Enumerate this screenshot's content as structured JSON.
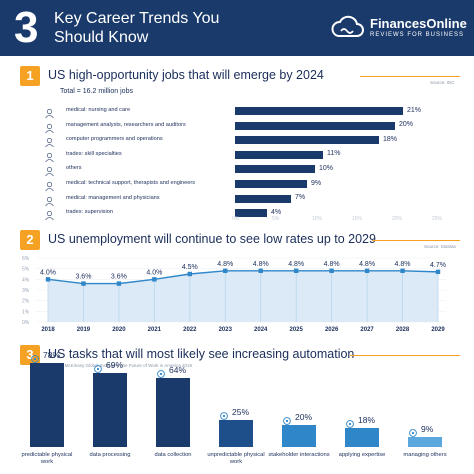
{
  "header": {
    "number": "3",
    "title": "Key Career Trends You Should Know",
    "brand": "FinancesOnline",
    "tagline": "REVIEWS FOR BUSINESS",
    "logo_icon": "cloud-wave-icon"
  },
  "colors": {
    "navy": "#1a3a6b",
    "orange": "#f4a124",
    "blue": "#2f86c9",
    "light_fill": "#dbeaf6"
  },
  "sections": [
    {
      "number": "1",
      "title": "US high-opportunity jobs that will emerge by 2024",
      "source": "Source: IDC",
      "subtitle": "Total = 16.2 million jobs"
    },
    {
      "number": "2",
      "title": "US unemployment will continue to see low rates up to 2029",
      "source": "Source: Statista"
    },
    {
      "number": "3",
      "title": "US tasks that will most likely see increasing automation",
      "source": "Source: McKinsey Global Institute's The Future of Work in America 2019"
    }
  ],
  "chart_data": [
    {
      "type": "bar",
      "orientation": "horizontal",
      "categories": [
        "medical: nursing and care",
        "management analysts, researchers and auditors",
        "computer programmers and operations",
        "trades: skill specialties",
        "others",
        "medical: technical support, therapists and engineers",
        "medical: management and physicians",
        "trades: supervision"
      ],
      "icons": [
        "nurse-icon",
        "analyst-icon",
        "computer-icon",
        "tools-icon",
        "people-icon",
        "medical-tech-icon",
        "doctor-icon",
        "supervisor-icon"
      ],
      "values": [
        21,
        20,
        18,
        11,
        10,
        9,
        7,
        4
      ],
      "value_labels": [
        "21%",
        "20%",
        "18%",
        "11%",
        "10%",
        "9%",
        "7%",
        "4%"
      ],
      "xticks": [
        "0%",
        "5%",
        "10%",
        "15%",
        "20%",
        "25%"
      ],
      "xlim": [
        0,
        25
      ]
    },
    {
      "type": "line",
      "x": [
        "2018",
        "2019",
        "2020",
        "2021",
        "2022",
        "2023",
        "2024",
        "2025",
        "2026",
        "2027",
        "2028",
        "2029"
      ],
      "values": [
        4.0,
        3.6,
        3.6,
        4.0,
        4.5,
        4.8,
        4.8,
        4.8,
        4.8,
        4.8,
        4.8,
        4.7
      ],
      "value_labels": [
        "4.0%",
        "3.6%",
        "3.6%",
        "4.0%",
        "4.5%",
        "4.8%",
        "4.8%",
        "4.8%",
        "4.8%",
        "4.8%",
        "4.8%",
        "4.7%"
      ],
      "yticks": [
        "0%",
        "1%",
        "2%",
        "3%",
        "4%",
        "5%",
        "6%"
      ],
      "ylim": [
        0,
        6
      ]
    },
    {
      "type": "bar",
      "categories": [
        "predictable physical work",
        "data processing",
        "data collection",
        "unpredictable physical work",
        "stakeholder interactions",
        "applying expertise",
        "managing others"
      ],
      "icons": [
        "gears-icon",
        "chart-icon",
        "cloud-data-icon",
        "worker-icon",
        "handshake-icon",
        "lightbulb-icon",
        "team-icon"
      ],
      "values": [
        78,
        69,
        64,
        25,
        20,
        18,
        9
      ],
      "value_labels": [
        "78%",
        "69%",
        "64%",
        "25%",
        "20%",
        "18%",
        "9%"
      ],
      "colors": [
        "#1a3a6b",
        "#1a3a6b",
        "#1a3a6b",
        "#1f4f8a",
        "#2f86c9",
        "#2f86c9",
        "#5aa8de"
      ],
      "ylim": [
        0,
        100
      ]
    }
  ]
}
